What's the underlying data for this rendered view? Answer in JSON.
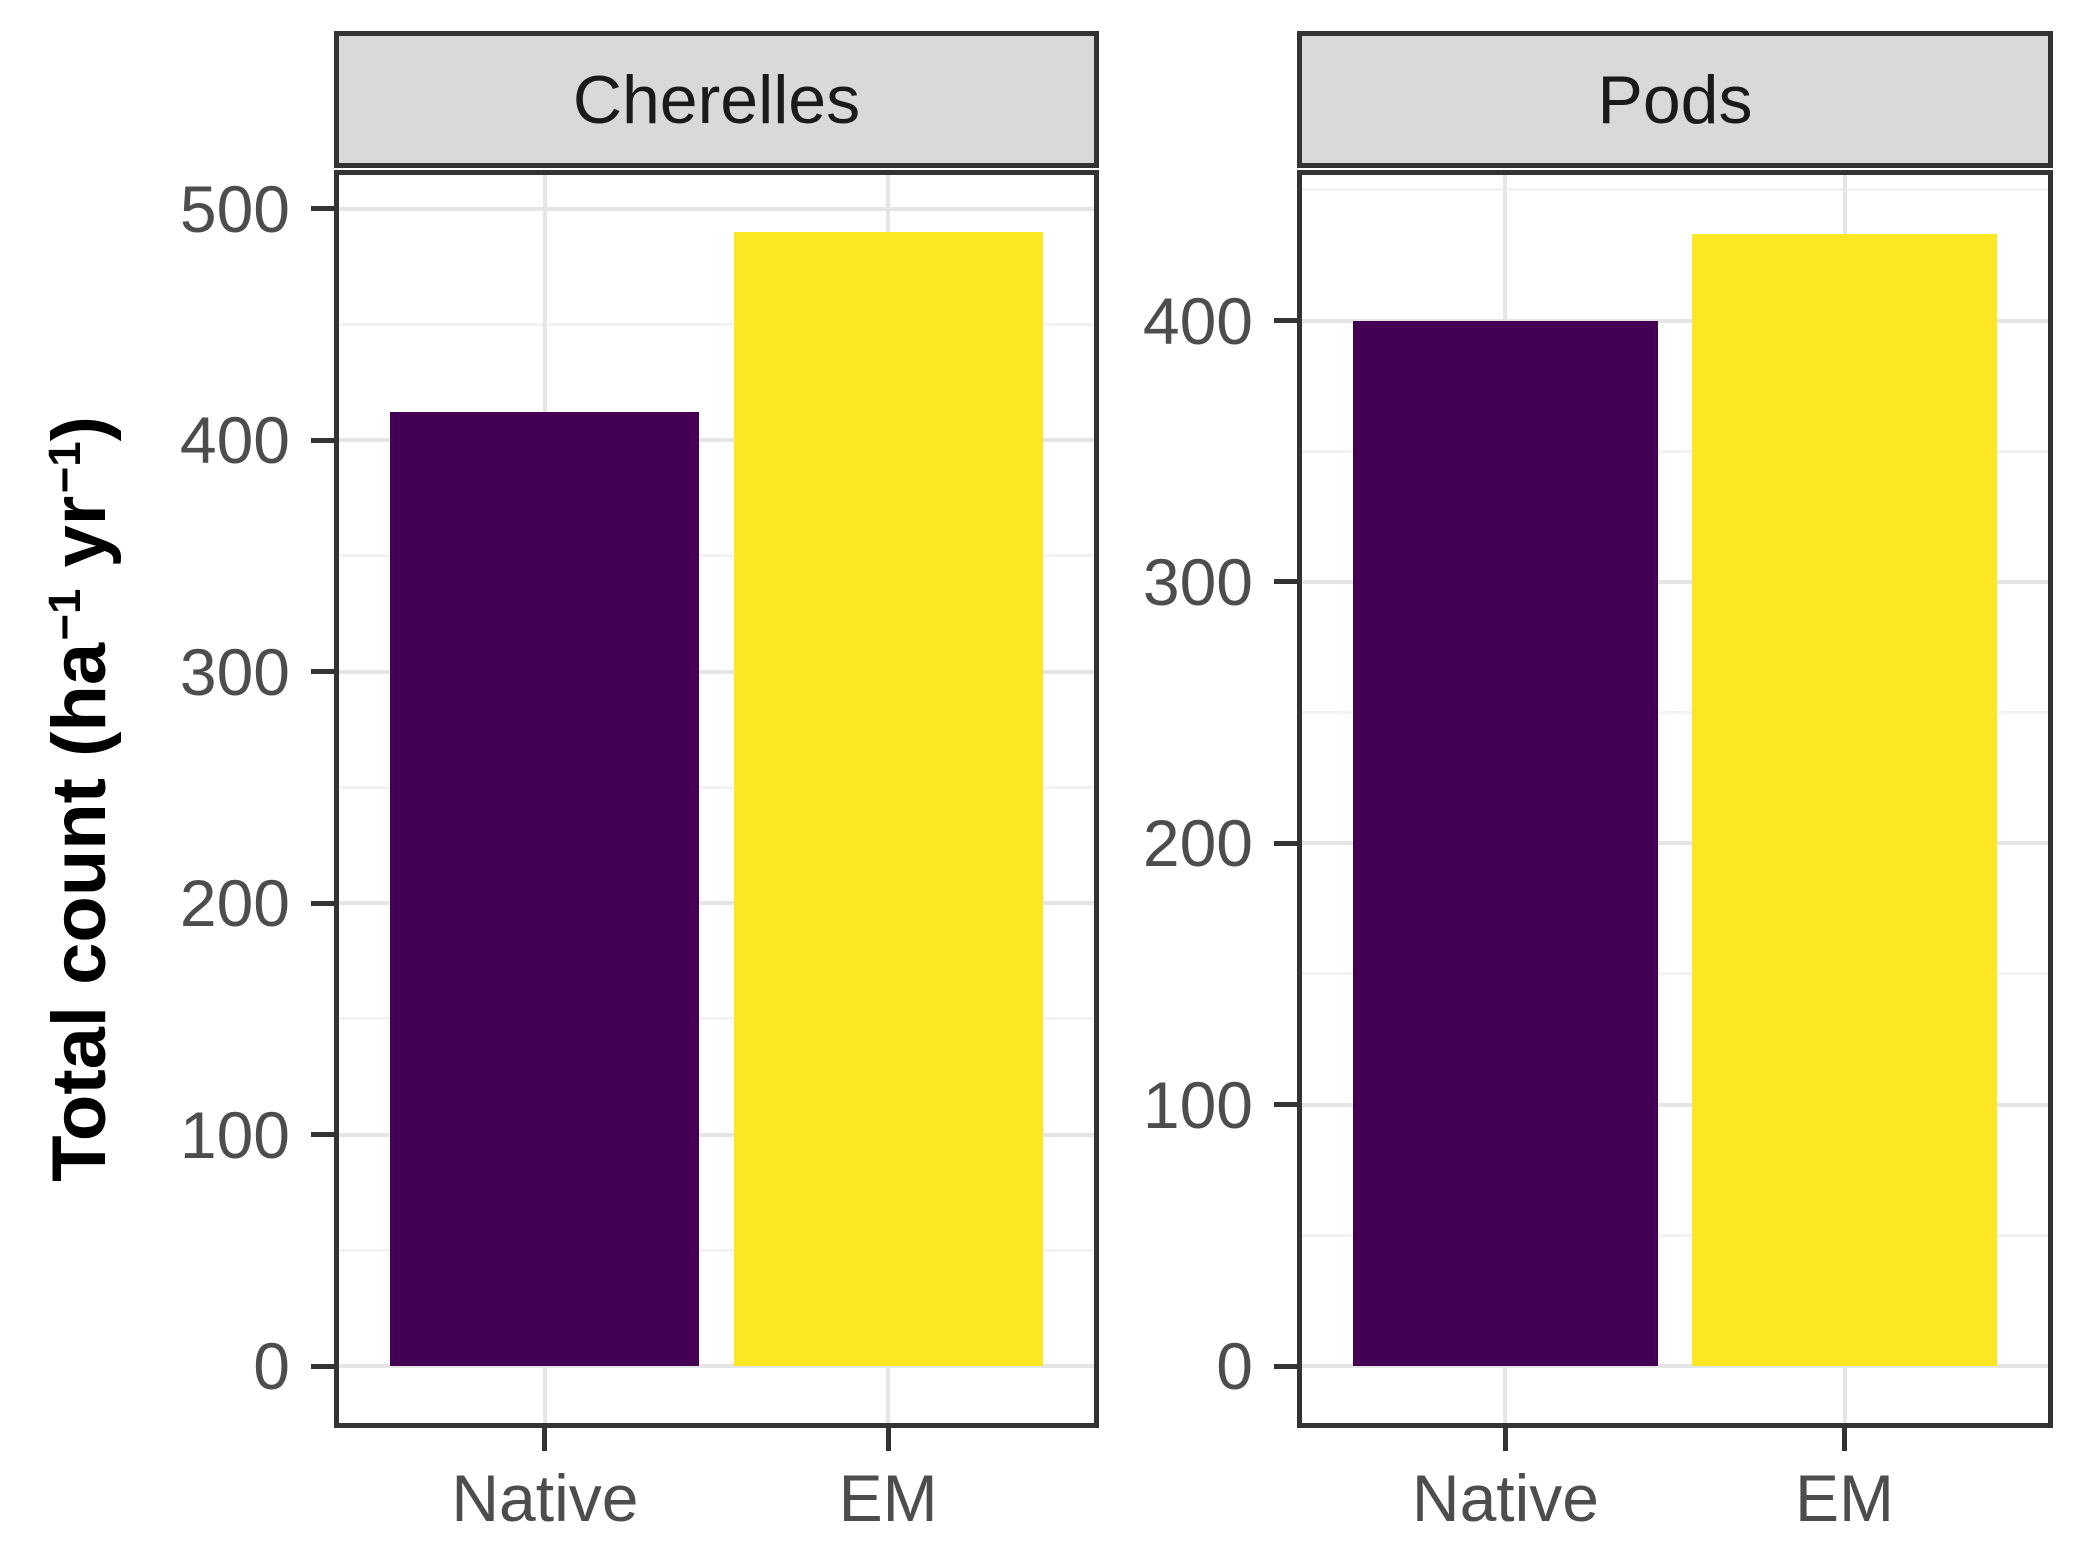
{
  "figure": {
    "background": "#FFFFFF"
  },
  "y_axis_title": {
    "full_text": "Total count (ha⁻¹ yr⁻¹)",
    "parts": [
      {
        "t": "Total count (ha",
        "sup": false
      },
      {
        "t": "−1",
        "sup": true
      },
      {
        "t": " yr",
        "sup": false
      },
      {
        "t": "−1",
        "sup": true
      },
      {
        "t": ")",
        "sup": false
      }
    ]
  },
  "chart_data": {
    "type": "bar",
    "orientation": "vertical",
    "legend": false,
    "grid": true,
    "ylabel": "Total count (ha⁻¹ yr⁻¹)",
    "categories": [
      "Native",
      "EM"
    ],
    "facets": [
      {
        "label": "Cherelles",
        "categories": [
          "Native",
          "EM"
        ],
        "values": [
          412,
          490
        ],
        "yticks": [
          0,
          100,
          200,
          300,
          400,
          500
        ],
        "yticks_minor": [
          50,
          150,
          250,
          350,
          450
        ],
        "ylim": [
          -24.5,
          514.5
        ]
      },
      {
        "label": "Pods",
        "categories": [
          "Native",
          "EM"
        ],
        "values": [
          400,
          433
        ],
        "yticks": [
          0,
          100,
          200,
          300,
          400
        ],
        "yticks_minor": [
          50,
          150,
          250,
          350,
          450
        ],
        "ylim": [
          -21.8,
          455.7
        ]
      }
    ],
    "bar_colors": {
      "Native": "#440154",
      "EM": "#FDE725"
    }
  },
  "style": {
    "strip_fill": "#D9D9D9",
    "panel_border": "#333333",
    "grid_major": "#E5E5E5",
    "grid_minor": "#F2F2F2",
    "axis_text": "#4D4D4D",
    "strip_text": "#1A1A1A",
    "title_text": "#000000"
  }
}
